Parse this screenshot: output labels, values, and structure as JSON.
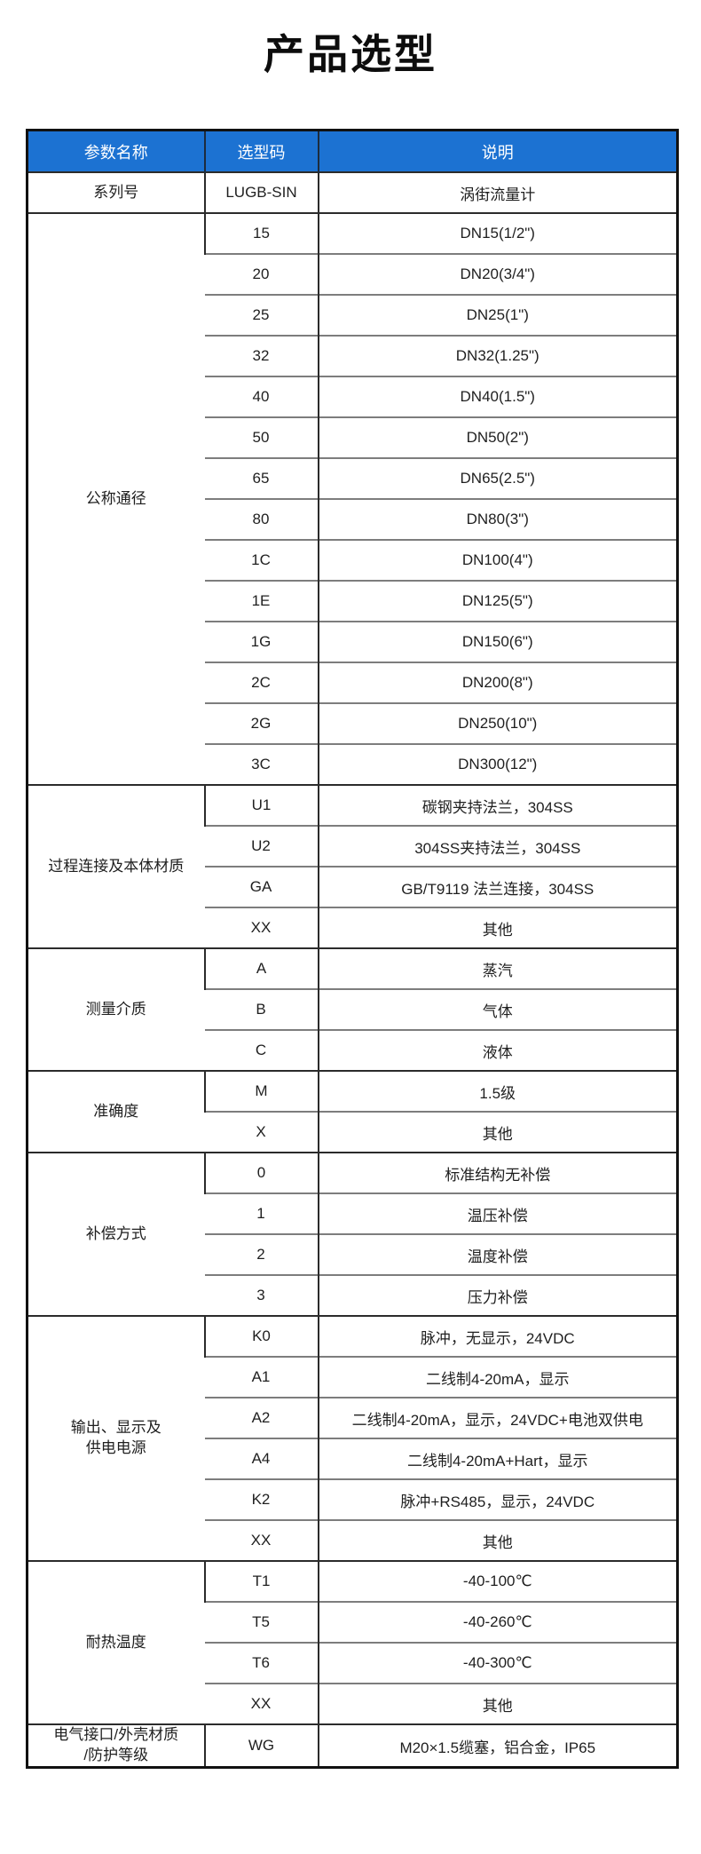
{
  "page": {
    "title": "产品选型"
  },
  "colors": {
    "header_bg": "#1C72D2",
    "header_text": "#FFFFFF",
    "cell_text": "#1F1F1F",
    "grid_inner": "#7D7D7D",
    "grid_strong": "#2B2B2B",
    "outer_border": "#111111"
  },
  "table": {
    "columns": [
      "参数名称",
      "选型码",
      "说明"
    ],
    "sections": [
      {
        "name": "系列号",
        "rows": [
          {
            "code": "LUGB-SIN",
            "desc": "涡街流量计"
          }
        ]
      },
      {
        "name": "公称通径",
        "rows": [
          {
            "code": "15",
            "desc": "DN15(1/2\")"
          },
          {
            "code": "20",
            "desc": "DN20(3/4\")"
          },
          {
            "code": "25",
            "desc": "DN25(1\")"
          },
          {
            "code": "32",
            "desc": "DN32(1.25\")"
          },
          {
            "code": "40",
            "desc": "DN40(1.5\")"
          },
          {
            "code": "50",
            "desc": "DN50(2\")"
          },
          {
            "code": "65",
            "desc": "DN65(2.5\")"
          },
          {
            "code": "80",
            "desc": "DN80(3\")"
          },
          {
            "code": "1C",
            "desc": "DN100(4\")"
          },
          {
            "code": "1E",
            "desc": "DN125(5\")"
          },
          {
            "code": "1G",
            "desc": "DN150(6\")"
          },
          {
            "code": "2C",
            "desc": "DN200(8\")"
          },
          {
            "code": "2G",
            "desc": "DN250(10\")"
          },
          {
            "code": "3C",
            "desc": "DN300(12\")"
          }
        ]
      },
      {
        "name": "过程连接及本体材质",
        "rows": [
          {
            "code": "U1",
            "desc": "碳钢夹持法兰，304SS"
          },
          {
            "code": "U2",
            "desc": "304SS夹持法兰，304SS"
          },
          {
            "code": "GA",
            "desc": "GB/T9119 法兰连接，304SS"
          },
          {
            "code": "XX",
            "desc": "其他"
          }
        ]
      },
      {
        "name": "测量介质",
        "rows": [
          {
            "code": "A",
            "desc": "蒸汽"
          },
          {
            "code": "B",
            "desc": "气体"
          },
          {
            "code": "C",
            "desc": "液体"
          }
        ]
      },
      {
        "name": "准确度",
        "rows": [
          {
            "code": "M",
            "desc": "1.5级"
          },
          {
            "code": "X",
            "desc": "其他"
          }
        ]
      },
      {
        "name": "补偿方式",
        "rows": [
          {
            "code": "0",
            "desc": "标准结构无补偿"
          },
          {
            "code": "1",
            "desc": "温压补偿"
          },
          {
            "code": "2",
            "desc": "温度补偿"
          },
          {
            "code": "3",
            "desc": "压力补偿"
          }
        ]
      },
      {
        "name": "输出、显示及\n供电电源",
        "rows": [
          {
            "code": "K0",
            "desc": "脉冲，无显示，24VDC"
          },
          {
            "code": "A1",
            "desc": "二线制4-20mA，显示"
          },
          {
            "code": "A2",
            "desc": "二线制4-20mA，显示，24VDC+电池双供电"
          },
          {
            "code": "A4",
            "desc": "二线制4-20mA+Hart，显示"
          },
          {
            "code": "K2",
            "desc": "脉冲+RS485，显示，24VDC"
          },
          {
            "code": "XX",
            "desc": "其他"
          }
        ]
      },
      {
        "name": "耐热温度",
        "rows": [
          {
            "code": "T1",
            "desc": "-40-100℃"
          },
          {
            "code": "T5",
            "desc": "-40-260℃"
          },
          {
            "code": "T6",
            "desc": "-40-300℃"
          },
          {
            "code": "XX",
            "desc": "其他"
          }
        ]
      },
      {
        "name": "电气接口/外壳材质\n/防护等级",
        "rows": [
          {
            "code": "WG",
            "desc": "M20×1.5缆塞，铝合金，IP65"
          }
        ]
      }
    ]
  }
}
